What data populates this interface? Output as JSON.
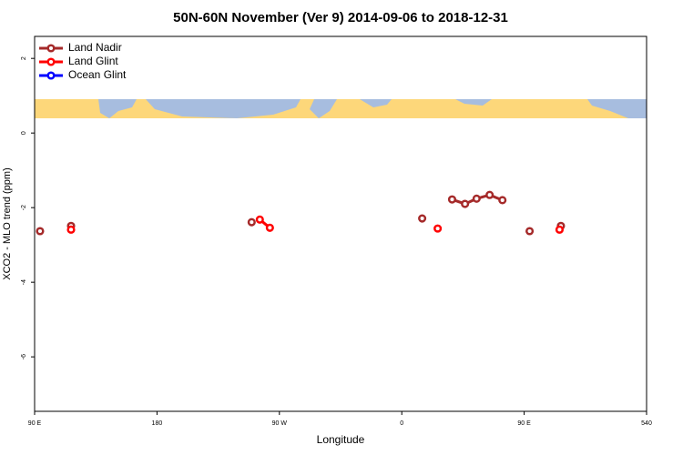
{
  "chart_data": {
    "type": "line",
    "title": "50N-60N November (Ver 9)   2014-09-06 to 2018-12-31",
    "x_label": "Longitude",
    "y_label": "XCO2 - MLO trend (ppm)",
    "xlim": [
      90,
      540
    ],
    "xticks": [
      {
        "value": 90,
        "label": "90 E"
      },
      180,
      {
        "value": 270,
        "label": "90 W"
      },
      {
        "value": 360,
        "label": "0"
      },
      {
        "value": 450,
        "label": "90 E"
      },
      540
    ],
    "ylim": [
      -7.46,
      2.59
    ],
    "yticks": [
      -6,
      -4,
      -2,
      0,
      2
    ],
    "legend": "top-left",
    "series": [
      {
        "name": "Land Nadir",
        "color": "#a52a2a",
        "x": [
          94,
          null,
          116.8,
          null,
          249.6,
          null,
          375,
          null,
          397,
          406.5,
          415,
          424.6,
          434,
          null,
          454,
          null,
          477
        ],
        "values": [
          -2.63,
          null,
          -2.49,
          null,
          -2.39,
          null,
          -2.29,
          null,
          -1.78,
          -1.9,
          -1.76,
          -1.66,
          -1.8,
          null,
          -2.63,
          null,
          -2.49
        ]
      },
      {
        "name": "Land Glint",
        "color": "#ff0000",
        "x": [
          116.8,
          null,
          255.6,
          263,
          null,
          386.4,
          null,
          476
        ],
        "values": [
          -2.59,
          null,
          -2.32,
          -2.54,
          null,
          -2.56,
          null,
          -2.59
        ]
      },
      {
        "name": "Ocean Glint",
        "color": "#0000ff",
        "x": [],
        "values": []
      }
    ]
  }
}
